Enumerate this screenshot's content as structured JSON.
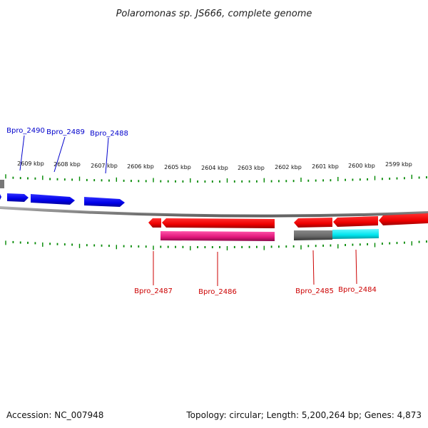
{
  "title": "Polaromonas sp. JS666, complete genome",
  "footer": {
    "accession": "Accession: NC_007948",
    "info": "Topology: circular; Length: 5,200,264 bp; Genes: 4,873"
  },
  "scale_labels": [
    "2609 kbp",
    "2608 kbp",
    "2607 kbp",
    "2606 kbp",
    "2605 kbp",
    "2604 kbp",
    "2603 kbp",
    "2602 kbp",
    "2601 kbp",
    "2600 kbp",
    "2599 kbp"
  ],
  "gene_labels": {
    "forward": [
      "Bpro_2490",
      "Bpro_2489",
      "Bpro_2488"
    ],
    "reverse": [
      "Bpro_2487",
      "Bpro_2486",
      "Bpro_2485",
      "Bpro_2484"
    ]
  },
  "colors": {
    "forward_strand": "#0000ee",
    "reverse_strand": "#ee0000",
    "forward_label": "#0000cc",
    "reverse_label": "#cc0000",
    "ticks": "#008800",
    "backbone": "#888888",
    "magenta_feature": "#e0157a",
    "grey_feature": "#666666",
    "cyan_feature": "#00e5ee"
  }
}
